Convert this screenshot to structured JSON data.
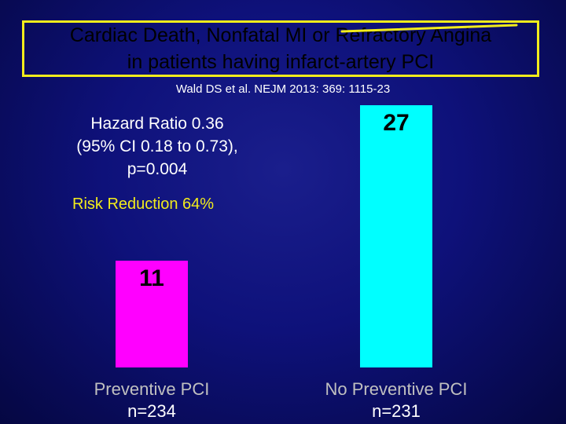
{
  "title": {
    "line1": "Cardiac Death, Nonfatal MI or Refractory Angina",
    "line2": "in patients having infarct-artery PCI"
  },
  "citation": "Wald DS et al. NEJM 2013: 369: 1115-23",
  "stats": {
    "line1": "Hazard Ratio 0.36",
    "line2": "(95% CI 0.18 to 0.73),",
    "line3": "p=0.004"
  },
  "risk_reduction": "Risk Reduction 64%",
  "colors": {
    "background": "#0e117a",
    "title_border": "#f2ec1c",
    "bar_preventive": "#ff00ff",
    "bar_no_preventive": "#00ffff",
    "annotation_line": "#f2ec1c"
  },
  "chart_data": {
    "type": "bar",
    "categories": [
      "Preventive PCI",
      "No Preventive PCI"
    ],
    "sample_sizes": [
      "n=234",
      "n=231"
    ],
    "values": [
      11,
      27
    ],
    "value_labels": [
      "11",
      "27"
    ],
    "title": "Cardiac Death, Nonfatal MI or Refractory Angina in patients having infarct-artery PCI",
    "xlabel": "",
    "ylabel": "",
    "ylim": [
      0,
      27
    ],
    "grid": false
  }
}
